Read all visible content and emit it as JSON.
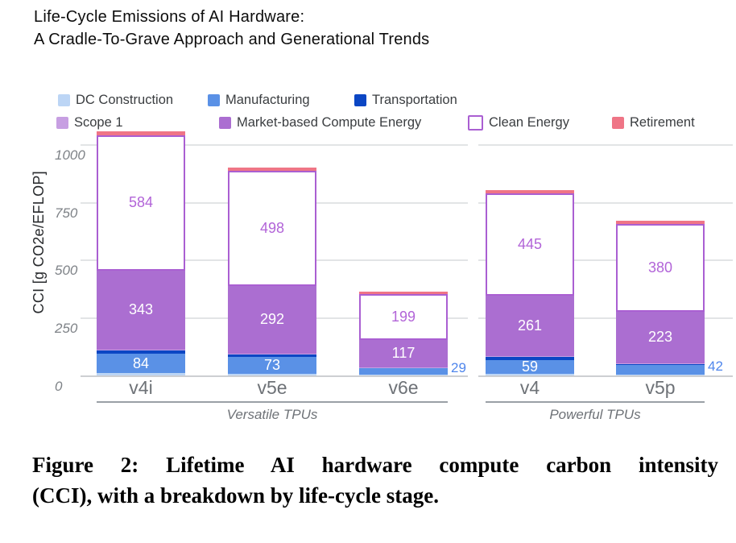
{
  "header": {
    "line1": "Life-Cycle Emissions of AI Hardware:",
    "line2": "A Cradle-To-Grave Approach and Generational Trends"
  },
  "caption": {
    "line1": "Figure 2: Lifetime AI hardware compute carbon intensity",
    "line2": "(CCI), with a breakdown by life-cycle stage."
  },
  "chart_data": {
    "type": "bar",
    "stacked": true,
    "ylabel": "CCI [g CO2e/EFLOP]",
    "yticks": [
      0,
      250,
      500,
      750,
      1000
    ],
    "ylim": [
      0,
      1100
    ],
    "grid": "horizontal",
    "legend_position": "top",
    "categories": [
      "v4i",
      "v5e",
      "v6e",
      "v4",
      "v5p"
    ],
    "groups": [
      {
        "label": "Versatile TPUs",
        "categories": [
          "v4i",
          "v5e",
          "v6e"
        ]
      },
      {
        "label": "Powerful TPUs",
        "categories": [
          "v4",
          "v5p"
        ]
      }
    ],
    "series": [
      {
        "name": "DC Construction",
        "color": "#bcd5f5",
        "values": [
          10,
          8,
          3,
          8,
          4
        ],
        "labeled": false
      },
      {
        "name": "Manufacturing",
        "color": "#5a91e6",
        "values": [
          84,
          73,
          29,
          59,
          42
        ],
        "labeled": true,
        "label_color": "#ffffff",
        "outside": [
          false,
          false,
          true,
          false,
          true
        ],
        "outside_label_color": "#4f86ec"
      },
      {
        "name": "Transportation",
        "color": "#0b46c4",
        "values": [
          15,
          12,
          3,
          13,
          5
        ],
        "labeled": false
      },
      {
        "name": "Scope 1",
        "color": "#c79fe2",
        "values": [
          2,
          2,
          1,
          2,
          2
        ],
        "labeled": false
      },
      {
        "name": "Market-based Compute Energy",
        "color": "#ab6ed1",
        "values": [
          343,
          292,
          117,
          261,
          223
        ],
        "labeled": true,
        "label_color": "#ffffff"
      },
      {
        "name": "Clean Energy",
        "color": "#ffffff",
        "border_color": "#aa5fd2",
        "values": [
          584,
          498,
          199,
          445,
          380
        ],
        "labeled": true,
        "label_color": "#b264d8"
      },
      {
        "name": "Retirement",
        "color": "#ef7586",
        "values": [
          16,
          14,
          10,
          14,
          12
        ],
        "labeled": false
      }
    ],
    "colors": {
      "gridline": "#e2e4e6",
      "axis_text": "#7e8287",
      "category_text": "#6e7277",
      "outside_value_text": "#4f86ec"
    }
  }
}
